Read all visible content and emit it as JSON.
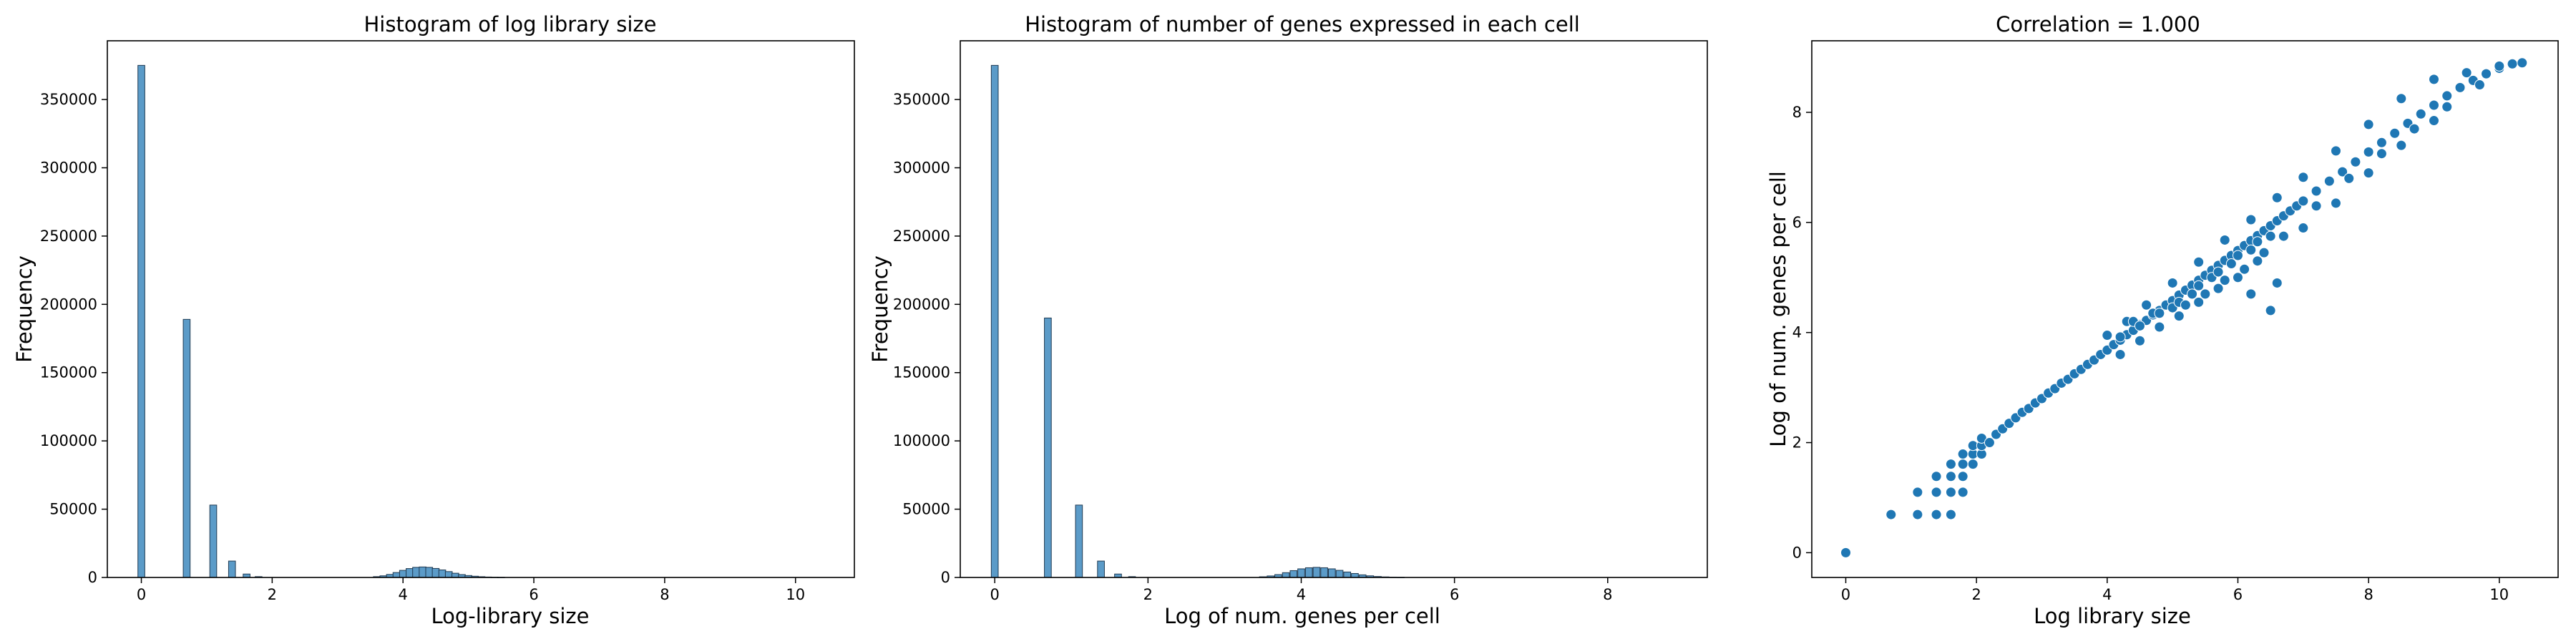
{
  "chart_data": [
    {
      "type": "bar",
      "title": "Histogram of log library size",
      "xlabel": "Log-library size",
      "ylabel": "Frequency",
      "xlim": [
        -0.52,
        10.9
      ],
      "ylim": [
        0,
        393000
      ],
      "xticks": [
        0,
        2,
        4,
        6,
        8,
        10
      ],
      "yticks": [
        0,
        50000,
        100000,
        150000,
        200000,
        250000,
        300000,
        350000
      ],
      "bar_color": "#5b9bc8",
      "bar_edge_color": "#1f3a52",
      "bin_width": 0.105,
      "bars": [
        [
          0,
          375000
        ],
        [
          0.693,
          189000
        ],
        [
          1.099,
          53000
        ],
        [
          1.386,
          12000
        ],
        [
          1.609,
          2500
        ],
        [
          1.792,
          600
        ],
        [
          3.6,
          600
        ],
        [
          3.7,
          1200
        ],
        [
          3.8,
          2200
        ],
        [
          3.9,
          3600
        ],
        [
          4.0,
          5200
        ],
        [
          4.1,
          6500
        ],
        [
          4.2,
          7400
        ],
        [
          4.3,
          7700
        ],
        [
          4.4,
          7400
        ],
        [
          4.5,
          6600
        ],
        [
          4.6,
          5500
        ],
        [
          4.7,
          4300
        ],
        [
          4.8,
          3100
        ],
        [
          4.9,
          2100
        ],
        [
          5.0,
          1400
        ],
        [
          5.1,
          900
        ],
        [
          5.2,
          550
        ],
        [
          5.3,
          320
        ],
        [
          5.4,
          180
        ],
        [
          5.5,
          100
        ]
      ]
    },
    {
      "type": "bar",
      "title": "Histogram of number of genes expressed in each cell",
      "xlabel": "Log of num. genes per cell",
      "ylabel": "Frequency",
      "xlim": [
        -0.45,
        9.3
      ],
      "ylim": [
        0,
        393000
      ],
      "xticks": [
        0,
        2,
        4,
        6,
        8
      ],
      "yticks": [
        0,
        50000,
        100000,
        150000,
        200000,
        250000,
        300000,
        350000
      ],
      "bar_color": "#5b9bc8",
      "bar_edge_color": "#1f3a52",
      "bin_width": 0.09,
      "bars": [
        [
          0,
          375000
        ],
        [
          0.693,
          190000
        ],
        [
          1.099,
          53000
        ],
        [
          1.386,
          12000
        ],
        [
          1.609,
          2500
        ],
        [
          1.792,
          600
        ],
        [
          3.5,
          500
        ],
        [
          3.6,
          1100
        ],
        [
          3.7,
          2100
        ],
        [
          3.8,
          3500
        ],
        [
          3.9,
          5000
        ],
        [
          4.0,
          6300
        ],
        [
          4.1,
          7100
        ],
        [
          4.2,
          7400
        ],
        [
          4.3,
          7100
        ],
        [
          4.4,
          6300
        ],
        [
          4.5,
          5200
        ],
        [
          4.6,
          4000
        ],
        [
          4.7,
          2900
        ],
        [
          4.8,
          1900
        ],
        [
          4.9,
          1200
        ],
        [
          5.0,
          700
        ],
        [
          5.1,
          400
        ],
        [
          5.2,
          200
        ],
        [
          5.3,
          100
        ]
      ]
    },
    {
      "type": "scatter",
      "title": "Correlation = 1.000",
      "xlabel": "Log library size",
      "ylabel": "Log of num. genes per cell",
      "xlim": [
        -0.52,
        10.9
      ],
      "ylim": [
        -0.45,
        9.3
      ],
      "xticks": [
        0,
        2,
        4,
        6,
        8,
        10
      ],
      "yticks": [
        0,
        2,
        4,
        6,
        8
      ],
      "point_color": "#1f77b4",
      "point_edge_color": "#ffffff",
      "points": [
        [
          0,
          0
        ],
        [
          0.693,
          0.693
        ],
        [
          1.099,
          0.693
        ],
        [
          1.099,
          1.099
        ],
        [
          1.386,
          0.693
        ],
        [
          1.386,
          1.099
        ],
        [
          1.386,
          1.386
        ],
        [
          1.609,
          0.693
        ],
        [
          1.609,
          1.099
        ],
        [
          1.609,
          1.386
        ],
        [
          1.609,
          1.609
        ],
        [
          1.792,
          1.099
        ],
        [
          1.792,
          1.386
        ],
        [
          1.792,
          1.609
        ],
        [
          1.792,
          1.792
        ],
        [
          1.946,
          1.609
        ],
        [
          1.946,
          1.792
        ],
        [
          1.946,
          1.946
        ],
        [
          2.079,
          1.792
        ],
        [
          2.079,
          1.946
        ],
        [
          2.079,
          2.079
        ],
        [
          2.2,
          2.0
        ],
        [
          2.3,
          2.15
        ],
        [
          2.4,
          2.25
        ],
        [
          2.5,
          2.35
        ],
        [
          2.6,
          2.45
        ],
        [
          2.7,
          2.55
        ],
        [
          2.8,
          2.62
        ],
        [
          2.9,
          2.72
        ],
        [
          3.0,
          2.8
        ],
        [
          3.1,
          2.9
        ],
        [
          3.2,
          2.98
        ],
        [
          3.3,
          3.08
        ],
        [
          3.4,
          3.15
        ],
        [
          3.5,
          3.25
        ],
        [
          3.6,
          3.33
        ],
        [
          3.7,
          3.42
        ],
        [
          3.8,
          3.5
        ],
        [
          3.9,
          3.6
        ],
        [
          4.0,
          3.68
        ],
        [
          4.1,
          3.78
        ],
        [
          4.2,
          3.86
        ],
        [
          4.3,
          3.96
        ],
        [
          4.4,
          4.04
        ],
        [
          4.5,
          4.14
        ],
        [
          4.6,
          4.22
        ],
        [
          4.7,
          4.32
        ],
        [
          4.8,
          4.4
        ],
        [
          4.9,
          4.5
        ],
        [
          5.0,
          4.58
        ],
        [
          5.1,
          4.68
        ],
        [
          5.2,
          4.77
        ],
        [
          5.3,
          4.86
        ],
        [
          5.4,
          4.95
        ],
        [
          5.5,
          5.04
        ],
        [
          5.6,
          5.13
        ],
        [
          5.7,
          5.22
        ],
        [
          5.8,
          5.31
        ],
        [
          5.9,
          5.4
        ],
        [
          6.0,
          5.49
        ],
        [
          6.1,
          5.58
        ],
        [
          6.2,
          5.67
        ],
        [
          6.3,
          5.76
        ],
        [
          6.4,
          5.85
        ],
        [
          6.5,
          5.94
        ],
        [
          6.6,
          6.03
        ],
        [
          6.7,
          6.12
        ],
        [
          6.8,
          6.21
        ],
        [
          6.9,
          6.3
        ],
        [
          7.0,
          6.39
        ],
        [
          7.2,
          6.57
        ],
        [
          7.4,
          6.75
        ],
        [
          7.6,
          6.92
        ],
        [
          7.8,
          7.1
        ],
        [
          8.0,
          7.28
        ],
        [
          8.2,
          7.45
        ],
        [
          8.4,
          7.62
        ],
        [
          8.6,
          7.8
        ],
        [
          8.8,
          7.97
        ],
        [
          9.0,
          8.13
        ],
        [
          9.2,
          8.3
        ],
        [
          9.4,
          8.45
        ],
        [
          9.6,
          8.58
        ],
        [
          9.8,
          8.7
        ],
        [
          10.0,
          8.8
        ],
        [
          10.2,
          8.88
        ],
        [
          10.35,
          8.9
        ],
        [
          4.0,
          3.95
        ],
        [
          4.3,
          4.2
        ],
        [
          4.6,
          4.5
        ],
        [
          5.0,
          4.9
        ],
        [
          5.4,
          5.28
        ],
        [
          5.8,
          5.68
        ],
        [
          6.2,
          6.05
        ],
        [
          6.6,
          6.45
        ],
        [
          7.0,
          6.82
        ],
        [
          7.5,
          7.3
        ],
        [
          8.0,
          7.78
        ],
        [
          8.5,
          8.25
        ],
        [
          9.0,
          8.6
        ],
        [
          9.5,
          8.72
        ],
        [
          10.0,
          8.84
        ],
        [
          4.2,
          3.6
        ],
        [
          4.5,
          3.85
        ],
        [
          4.8,
          4.1
        ],
        [
          5.1,
          4.3
        ],
        [
          5.4,
          4.55
        ],
        [
          5.7,
          4.8
        ],
        [
          6.0,
          5.0
        ],
        [
          6.3,
          5.3
        ],
        [
          6.2,
          4.7
        ],
        [
          6.6,
          4.9
        ],
        [
          6.5,
          4.4
        ],
        [
          7.0,
          5.9
        ],
        [
          7.5,
          6.35
        ],
        [
          8.0,
          6.9
        ],
        [
          8.5,
          7.4
        ],
        [
          9.0,
          7.85
        ],
        [
          4.4,
          4.2
        ],
        [
          4.7,
          4.35
        ],
        [
          5.0,
          4.45
        ],
        [
          5.3,
          4.7
        ],
        [
          5.6,
          5.0
        ],
        [
          5.9,
          5.25
        ],
        [
          6.2,
          5.5
        ],
        [
          6.5,
          5.75
        ],
        [
          4.2,
          3.92
        ],
        [
          4.5,
          4.12
        ],
        [
          4.8,
          4.35
        ],
        [
          5.1,
          4.55
        ],
        [
          5.4,
          4.85
        ],
        [
          5.7,
          5.1
        ],
        [
          6.0,
          5.4
        ],
        [
          6.3,
          5.65
        ],
        [
          5.2,
          4.5
        ],
        [
          5.5,
          4.7
        ],
        [
          5.8,
          4.95
        ],
        [
          6.1,
          5.15
        ],
        [
          6.4,
          5.45
        ],
        [
          6.7,
          5.75
        ],
        [
          7.2,
          6.3
        ],
        [
          7.7,
          6.8
        ],
        [
          8.2,
          7.25
        ],
        [
          8.7,
          7.7
        ],
        [
          9.2,
          8.1
        ],
        [
          9.7,
          8.5
        ]
      ]
    }
  ]
}
